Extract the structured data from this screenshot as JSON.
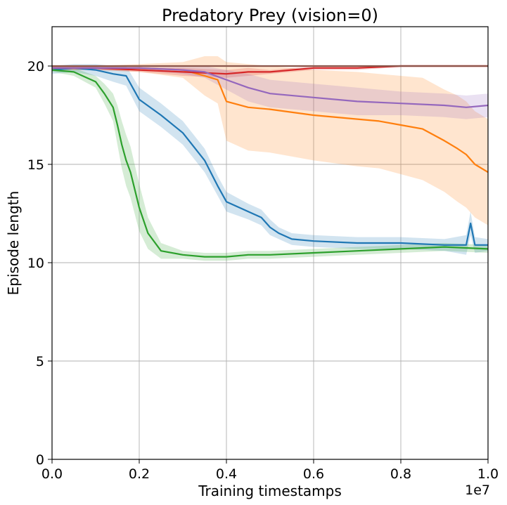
{
  "chart_data": {
    "type": "line",
    "title": "Predatory Prey (vision=0)",
    "xlabel": "Training timestamps",
    "ylabel": "Episode length",
    "x_offset_label": "1e7",
    "xlim": [
      0,
      1.0
    ],
    "ylim": [
      0,
      22
    ],
    "xticks": [
      "0.0",
      "0.2",
      "0.4",
      "0.6",
      "0.8",
      "1.0"
    ],
    "yticks": [
      "0",
      "5",
      "10",
      "15",
      "20"
    ],
    "grid": true,
    "legend": "none",
    "series": [
      {
        "color": "#1f77b4",
        "x": [
          0,
          0.05,
          0.1,
          0.14,
          0.17,
          0.2,
          0.25,
          0.3,
          0.35,
          0.38,
          0.4,
          0.45,
          0.48,
          0.5,
          0.52,
          0.55,
          0.6,
          0.7,
          0.8,
          0.9,
          0.95,
          0.96,
          0.97,
          1.0
        ],
        "y": [
          19.8,
          19.9,
          19.8,
          19.6,
          19.5,
          18.3,
          17.5,
          16.6,
          15.2,
          13.9,
          13.1,
          12.6,
          12.3,
          11.8,
          11.5,
          11.2,
          11.1,
          11.0,
          11.0,
          10.9,
          10.9,
          12.0,
          10.9,
          10.9
        ],
        "band": [
          0.2,
          0.2,
          0.3,
          0.4,
          0.5,
          0.6,
          0.6,
          0.6,
          0.6,
          0.5,
          0.5,
          0.4,
          0.4,
          0.4,
          0.3,
          0.3,
          0.3,
          0.3,
          0.3,
          0.3,
          0.5,
          0.6,
          0.4,
          0.3
        ]
      },
      {
        "color": "#ff7f0e",
        "x": [
          0,
          0.1,
          0.2,
          0.3,
          0.35,
          0.38,
          0.4,
          0.45,
          0.5,
          0.6,
          0.7,
          0.75,
          0.8,
          0.85,
          0.9,
          0.93,
          0.95,
          0.97,
          1.0
        ],
        "y": [
          19.9,
          19.9,
          19.9,
          19.8,
          19.5,
          19.3,
          18.2,
          17.9,
          17.8,
          17.5,
          17.3,
          17.2,
          17.0,
          16.8,
          16.2,
          15.8,
          15.5,
          15.0,
          14.6
        ],
        "band": [
          0.1,
          0.1,
          0.2,
          0.4,
          1.0,
          1.2,
          2.0,
          2.2,
          2.2,
          2.3,
          2.4,
          2.4,
          2.5,
          2.6,
          2.6,
          2.7,
          2.7,
          2.7,
          2.7
        ]
      },
      {
        "color": "#2ca02c",
        "x": [
          0,
          0.05,
          0.1,
          0.12,
          0.14,
          0.15,
          0.16,
          0.17,
          0.18,
          0.2,
          0.22,
          0.25,
          0.3,
          0.35,
          0.4,
          0.45,
          0.5,
          0.6,
          0.7,
          0.8,
          0.9,
          1.0
        ],
        "y": [
          19.8,
          19.7,
          19.2,
          18.6,
          17.9,
          17.0,
          16.0,
          15.2,
          14.6,
          12.8,
          11.5,
          10.6,
          10.4,
          10.3,
          10.3,
          10.4,
          10.4,
          10.5,
          10.6,
          10.7,
          10.8,
          10.7
        ],
        "band": [
          0.1,
          0.2,
          0.3,
          0.5,
          0.7,
          1.0,
          1.2,
          1.3,
          1.3,
          1.2,
          0.8,
          0.4,
          0.2,
          0.2,
          0.2,
          0.2,
          0.2,
          0.2,
          0.2,
          0.2,
          0.2,
          0.2
        ]
      },
      {
        "color": "#d62728",
        "x": [
          0,
          0.1,
          0.2,
          0.3,
          0.4,
          0.45,
          0.5,
          0.55,
          0.6,
          0.7,
          0.8,
          0.9,
          1.0
        ],
        "y": [
          19.9,
          19.9,
          19.8,
          19.7,
          19.6,
          19.7,
          19.7,
          19.8,
          19.9,
          19.9,
          20.0,
          20.0,
          20.0
        ],
        "band": [
          0.1,
          0.1,
          0.1,
          0.2,
          0.2,
          0.2,
          0.1,
          0.1,
          0.1,
          0.1,
          0.05,
          0.05,
          0.05
        ]
      },
      {
        "color": "#9467bd",
        "x": [
          0,
          0.1,
          0.2,
          0.3,
          0.35,
          0.4,
          0.45,
          0.5,
          0.6,
          0.7,
          0.8,
          0.9,
          0.95,
          1.0
        ],
        "y": [
          19.9,
          19.9,
          19.9,
          19.8,
          19.7,
          19.3,
          18.9,
          18.6,
          18.4,
          18.2,
          18.1,
          18.0,
          17.9,
          18.0
        ],
        "band": [
          0.1,
          0.1,
          0.1,
          0.2,
          0.3,
          0.5,
          0.7,
          0.7,
          0.7,
          0.7,
          0.6,
          0.6,
          0.6,
          0.6
        ]
      },
      {
        "color": "#8c564b",
        "x": [
          0,
          1.0
        ],
        "y": [
          20.0,
          20.0
        ],
        "band": [
          0.02,
          0.02
        ]
      }
    ]
  }
}
